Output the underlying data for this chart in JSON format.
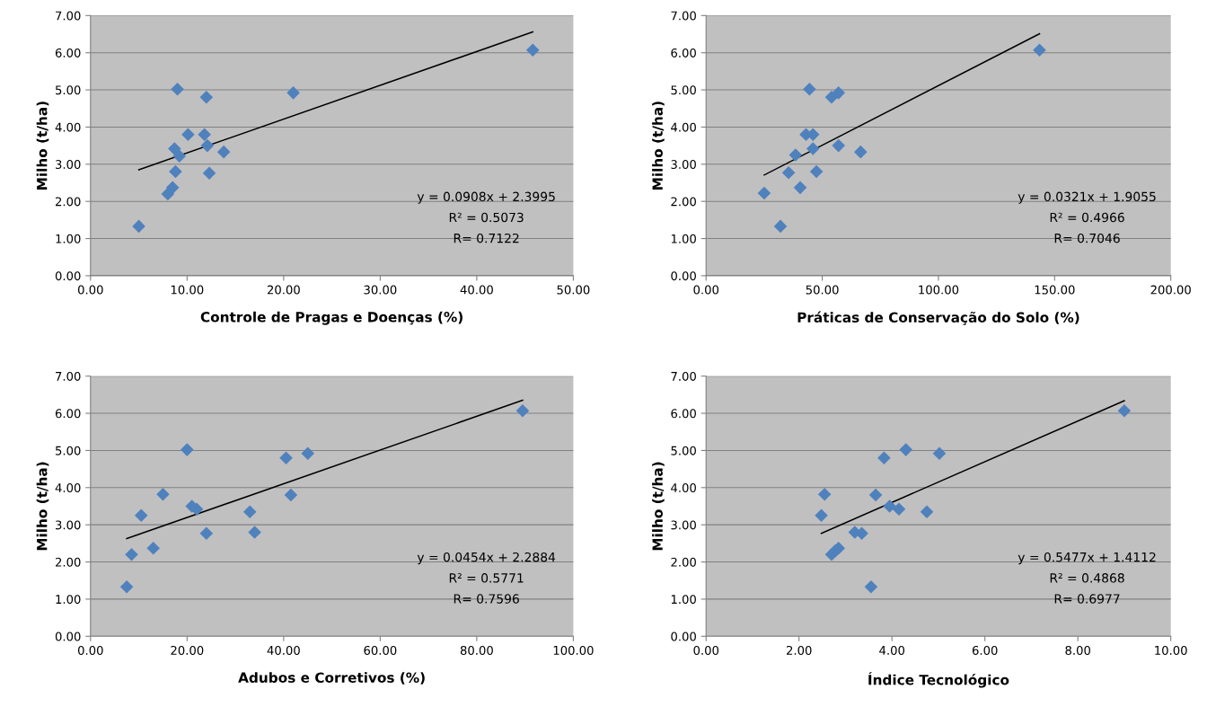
{
  "chart_data": [
    {
      "type": "scatter",
      "xlabel": "Controle de Pragas e Doenças (%)",
      "ylabel": "Milho (t/ha)",
      "xlim": [
        0,
        50
      ],
      "xticks": [
        {
          "value": 0,
          "label": "0.00"
        },
        {
          "value": 10,
          "label": "10.00"
        },
        {
          "value": 20,
          "label": "20.00"
        },
        {
          "value": 30,
          "label": "30.00"
        },
        {
          "value": 40,
          "label": "40.00"
        },
        {
          "value": 50,
          "label": "50.00"
        }
      ],
      "ylim": [
        0,
        7
      ],
      "yticks": [
        {
          "value": 0,
          "label": "0.00"
        },
        {
          "value": 1,
          "label": "1.00"
        },
        {
          "value": 2,
          "label": "2.00"
        },
        {
          "value": 3,
          "label": "3.00"
        },
        {
          "value": 4,
          "label": "4.00"
        },
        {
          "value": 5,
          "label": "5.00"
        },
        {
          "value": 6,
          "label": "6.00"
        },
        {
          "value": 7,
          "label": "7.00"
        }
      ],
      "grid": "y",
      "marker": "diamond",
      "series": [
        {
          "color": "#4f81bd",
          "x": [
            5.0,
            8.0,
            8.3,
            8.5,
            8.8,
            8.7,
            9.0,
            9.2,
            9.0,
            10.1,
            11.8,
            12.0,
            12.1,
            12.3,
            13.8,
            21.0,
            45.8
          ],
          "values": [
            1.33,
            2.2,
            null,
            2.37,
            2.8,
            3.42,
            null,
            3.22,
            5.02,
            3.8,
            3.8,
            4.8,
            3.5,
            2.76,
            3.33,
            4.92,
            6.07
          ]
        },
        {
          "type": "line",
          "color": "#000000",
          "marker": "none",
          "x": [
            5.0,
            45.8
          ],
          "values": [
            2.85,
            6.56
          ]
        }
      ],
      "annotations": [
        "y = 0.0908x + 2.3995",
        "R² = 0.5073",
        "R= 0.7122"
      ]
    },
    {
      "type": "scatter",
      "xlabel": "Práticas de Conservação do Solo (%)",
      "ylabel": "Milho (t/ha)",
      "xlim": [
        0,
        200
      ],
      "xticks": [
        {
          "value": 0,
          "label": "0.00"
        },
        {
          "value": 50,
          "label": "50.00"
        },
        {
          "value": 100,
          "label": "100.00"
        },
        {
          "value": 150,
          "label": "150.00"
        },
        {
          "value": 200,
          "label": "200.00"
        }
      ],
      "ylim": [
        0,
        7
      ],
      "yticks": [
        {
          "value": 0,
          "label": "0.00"
        },
        {
          "value": 1,
          "label": "1.00"
        },
        {
          "value": 2,
          "label": "2.00"
        },
        {
          "value": 3,
          "label": "3.00"
        },
        {
          "value": 4,
          "label": "4.00"
        },
        {
          "value": 5,
          "label": "5.00"
        },
        {
          "value": 6,
          "label": "6.00"
        },
        {
          "value": 7,
          "label": "7.00"
        }
      ],
      "grid": "y",
      "marker": "diamond",
      "series": [
        {
          "color": "#4f81bd",
          "x": [
            25,
            32,
            35.5,
            38.5,
            40.5,
            43,
            44.5,
            46,
            46,
            47.5,
            54,
            57,
            57,
            66.5,
            143.5
          ],
          "values": [
            2.22,
            1.33,
            2.77,
            3.25,
            2.37,
            3.8,
            5.02,
            3.8,
            3.42,
            2.8,
            4.8,
            4.92,
            3.5,
            3.33,
            6.07
          ]
        },
        {
          "type": "line",
          "color": "#000000",
          "marker": "none",
          "x": [
            25,
            143.5
          ],
          "values": [
            2.71,
            6.51
          ]
        }
      ],
      "annotations": [
        "y = 0.0321x + 1.9055",
        "R² = 0.4966",
        "R= 0.7046"
      ]
    },
    {
      "type": "scatter",
      "xlabel": "Adubos e Corretivos (%)",
      "ylabel": "Milho (t/ha)",
      "xlim": [
        0,
        100
      ],
      "xticks": [
        {
          "value": 0,
          "label": "0.00"
        },
        {
          "value": 20,
          "label": "20.00"
        },
        {
          "value": 40,
          "label": "40.00"
        },
        {
          "value": 60,
          "label": "60.00"
        },
        {
          "value": 80,
          "label": "80.00"
        },
        {
          "value": 100,
          "label": "100.00"
        }
      ],
      "ylim": [
        0,
        7
      ],
      "yticks": [
        {
          "value": 0,
          "label": "0.00"
        },
        {
          "value": 1,
          "label": "1.00"
        },
        {
          "value": 2,
          "label": "2.00"
        },
        {
          "value": 3,
          "label": "3.00"
        },
        {
          "value": 4,
          "label": "4.00"
        },
        {
          "value": 5,
          "label": "5.00"
        },
        {
          "value": 6,
          "label": "6.00"
        },
        {
          "value": 7,
          "label": "7.00"
        }
      ],
      "grid": "y",
      "marker": "diamond",
      "series": [
        {
          "color": "#4f81bd",
          "x": [
            7.5,
            8.5,
            10.5,
            13,
            15,
            20,
            21,
            22,
            24,
            33,
            34,
            40.5,
            41.5,
            45,
            89.5
          ],
          "values": [
            1.33,
            2.2,
            3.25,
            2.37,
            3.82,
            5.02,
            3.5,
            3.42,
            2.77,
            3.35,
            2.8,
            4.8,
            3.8,
            4.92,
            6.07
          ]
        },
        {
          "type": "line",
          "color": "#000000",
          "marker": "none",
          "x": [
            7.5,
            89.5
          ],
          "values": [
            2.63,
            6.35
          ]
        }
      ],
      "annotations": [
        "y = 0.0454x + 2.2884",
        "R² = 0.5771",
        "R= 0.7596"
      ]
    },
    {
      "type": "scatter",
      "xlabel": "Índice Tecnológico",
      "ylabel": "Milho (t/ha)",
      "xlim": [
        0,
        10
      ],
      "xticks": [
        {
          "value": 0,
          "label": "0.00"
        },
        {
          "value": 2,
          "label": "2.00"
        },
        {
          "value": 4,
          "label": "4.00"
        },
        {
          "value": 6,
          "label": "6.00"
        },
        {
          "value": 8,
          "label": "8.00"
        },
        {
          "value": 10,
          "label": "10.00"
        }
      ],
      "ylim": [
        0,
        7
      ],
      "yticks": [
        {
          "value": 0,
          "label": "0.00"
        },
        {
          "value": 1,
          "label": "1.00"
        },
        {
          "value": 2,
          "label": "2.00"
        },
        {
          "value": 3,
          "label": "3.00"
        },
        {
          "value": 4,
          "label": "4.00"
        },
        {
          "value": 5,
          "label": "5.00"
        },
        {
          "value": 6,
          "label": "6.00"
        },
        {
          "value": 7,
          "label": "7.00"
        }
      ],
      "grid": "y",
      "marker": "diamond",
      "series": [
        {
          "color": "#4f81bd",
          "x": [
            2.48,
            2.55,
            2.7,
            2.78,
            2.85,
            3.2,
            3.35,
            3.55,
            3.65,
            3.83,
            3.95,
            4.15,
            4.3,
            4.75,
            5.02,
            9.0
          ],
          "values": [
            3.25,
            3.82,
            2.2,
            2.3,
            2.37,
            2.8,
            2.77,
            1.33,
            3.8,
            4.8,
            3.5,
            3.42,
            5.02,
            3.35,
            4.92,
            6.07
          ]
        },
        {
          "type": "line",
          "color": "#000000",
          "marker": "none",
          "x": [
            2.48,
            9.0
          ],
          "values": [
            2.77,
            6.34
          ]
        }
      ],
      "annotations": [
        "y = 0.5477x + 1.4112",
        "R² = 0.4868",
        "R= 0.6977"
      ]
    }
  ]
}
